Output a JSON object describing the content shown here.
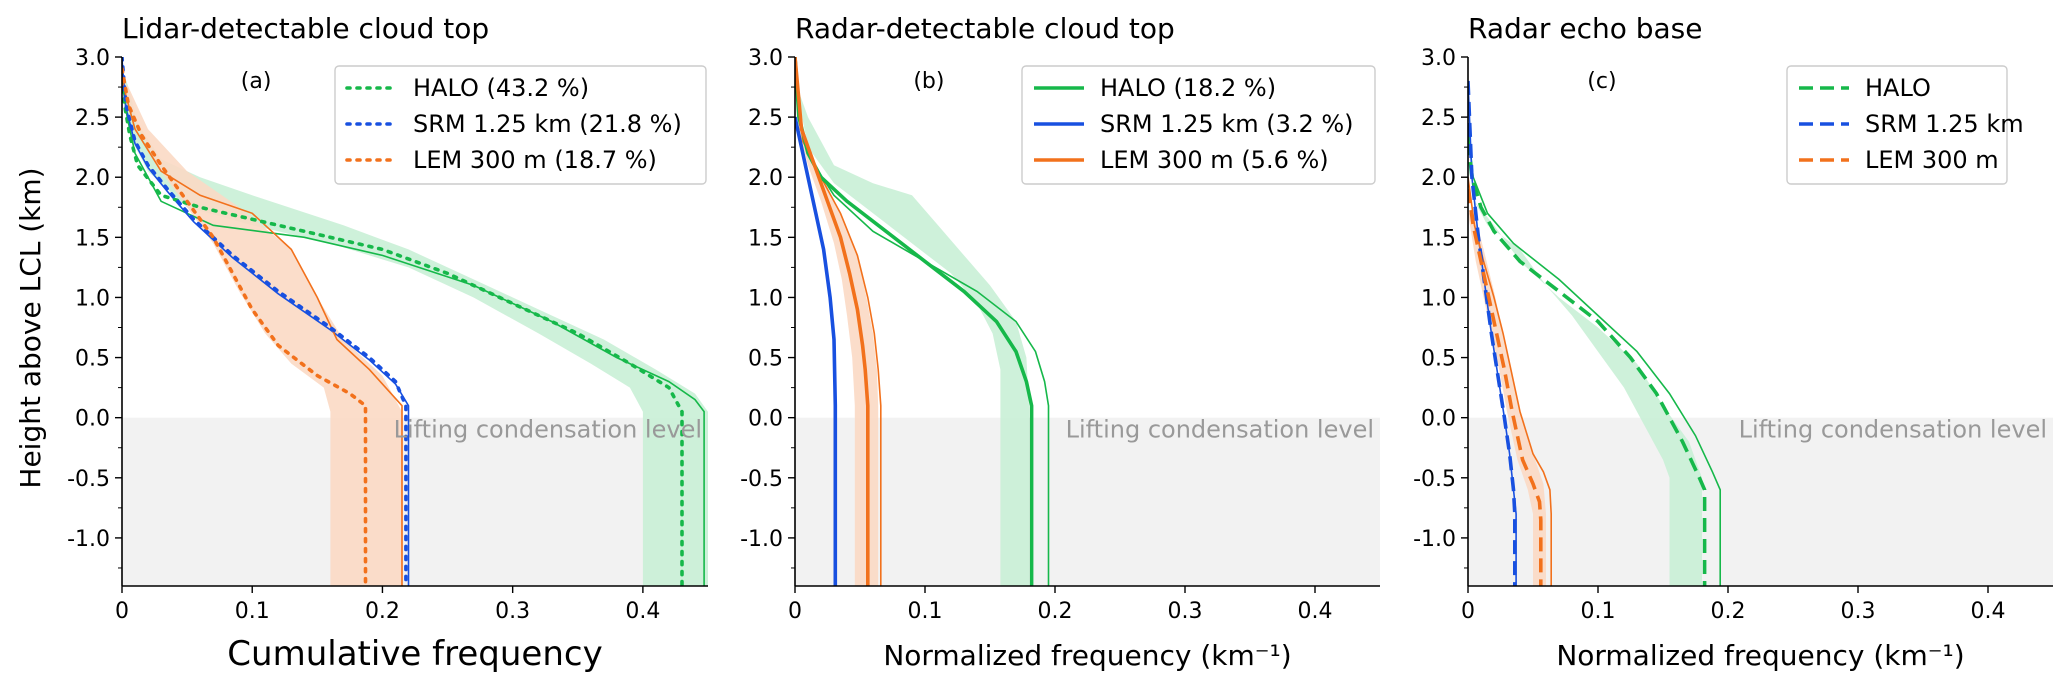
{
  "figure": {
    "ylabel": "Height above LCL (km)"
  },
  "colors": {
    "HALO": "#16b84a",
    "SRM": "#1850e0",
    "LEM": "#f2711c",
    "HALO_band": "#c9f0d6",
    "LEM_band": "#fbd9c4",
    "lcl_band": "#f2f2f2",
    "lcl_text": "#999999"
  },
  "chart_data": [
    {
      "type": "line",
      "panel_letter": "(a)",
      "title": "Lidar-detectable cloud top",
      "xlabel": "Cumulative frequency",
      "xlim": [
        0,
        0.45
      ],
      "ylim": [
        -1.4,
        3.0
      ],
      "x_ticks": [
        0,
        0.1,
        0.2,
        0.3,
        0.4
      ],
      "x_tick_labels": [
        "0",
        "0.1",
        "0.2",
        "0.3",
        "0.4"
      ],
      "y_ticks": [
        -1.0,
        -0.5,
        0.0,
        0.5,
        1.0,
        1.5,
        2.0,
        2.5,
        3.0
      ],
      "y_tick_labels": [
        "-1.0",
        "-0.5",
        "0.0",
        "0.5",
        "1.0",
        "1.5",
        "2.0",
        "2.5",
        "3.0"
      ],
      "line_style": "dotted",
      "lcl_label": "Lifting condensation level",
      "legend_position": "top-right",
      "series": [
        {
          "name": "HALO (43.2 %)",
          "key": "HALO",
          "x": [
            0,
            0.002,
            0.006,
            0.012,
            0.03,
            0.06,
            0.12,
            0.2,
            0.25,
            0.3,
            0.35,
            0.39,
            0.42,
            0.43,
            0.43
          ],
          "y": [
            2.9,
            2.6,
            2.35,
            2.1,
            1.85,
            1.75,
            1.6,
            1.4,
            1.2,
            0.95,
            0.7,
            0.45,
            0.25,
            0.05,
            -1.4
          ],
          "upper_x": [
            0.005,
            0.012,
            0.03,
            0.06,
            0.1,
            0.17,
            0.22,
            0.27,
            0.32,
            0.37,
            0.41,
            0.44,
            0.45,
            0.45
          ],
          "upper_y": [
            2.75,
            2.45,
            2.15,
            2.0,
            1.85,
            1.6,
            1.4,
            1.15,
            0.9,
            0.65,
            0.4,
            0.2,
            0.05,
            -1.4
          ],
          "lower_x": [
            0,
            0.003,
            0.008,
            0.02,
            0.05,
            0.1,
            0.16,
            0.22,
            0.27,
            0.32,
            0.36,
            0.39,
            0.4,
            0.4
          ],
          "lower_y": [
            2.9,
            2.55,
            2.3,
            2.05,
            1.75,
            1.6,
            1.45,
            1.25,
            1.0,
            0.7,
            0.45,
            0.25,
            0.05,
            -1.4
          ],
          "thin_x": [
            0,
            0.004,
            0.01,
            0.03,
            0.07,
            0.14,
            0.2,
            0.27,
            0.33,
            0.38,
            0.42,
            0.44,
            0.447,
            0.447
          ],
          "thin_y": [
            2.8,
            2.5,
            2.2,
            1.8,
            1.6,
            1.5,
            1.35,
            1.1,
            0.8,
            0.5,
            0.3,
            0.15,
            0.05,
            -1.4
          ]
        },
        {
          "name": "SRM 1.25 km (21.8 %)",
          "key": "SRM",
          "x": [
            0,
            0.003,
            0.01,
            0.02,
            0.035,
            0.055,
            0.085,
            0.12,
            0.16,
            0.19,
            0.21,
            0.218,
            0.218
          ],
          "y": [
            3.0,
            2.6,
            2.3,
            2.1,
            1.9,
            1.65,
            1.35,
            1.05,
            0.75,
            0.5,
            0.3,
            0.1,
            -1.4
          ],
          "thin_x": [
            0,
            0.003,
            0.01,
            0.02,
            0.035,
            0.055,
            0.085,
            0.12,
            0.16,
            0.19,
            0.21,
            0.22,
            0.22
          ],
          "thin_y": [
            2.98,
            2.58,
            2.28,
            2.08,
            1.88,
            1.63,
            1.33,
            1.03,
            0.73,
            0.48,
            0.28,
            0.1,
            -1.4
          ]
        },
        {
          "name": "LEM 300 m (18.7 %)",
          "key": "LEM",
          "x": [
            0,
            0.005,
            0.015,
            0.03,
            0.05,
            0.07,
            0.085,
            0.1,
            0.12,
            0.15,
            0.175,
            0.187,
            0.187
          ],
          "y": [
            2.9,
            2.6,
            2.35,
            2.1,
            1.8,
            1.5,
            1.2,
            0.9,
            0.6,
            0.35,
            0.2,
            0.1,
            -1.4
          ],
          "upper_x": [
            0.005,
            0.02,
            0.05,
            0.09,
            0.13,
            0.15,
            0.17,
            0.2,
            0.215,
            0.215
          ],
          "upper_y": [
            2.75,
            2.4,
            2.05,
            1.75,
            1.4,
            1.0,
            0.65,
            0.35,
            0.05,
            -1.4
          ],
          "lower_x": [
            0,
            0.01,
            0.03,
            0.05,
            0.07,
            0.09,
            0.11,
            0.13,
            0.155,
            0.16,
            0.16
          ],
          "lower_y": [
            2.8,
            2.45,
            2.05,
            1.75,
            1.45,
            1.05,
            0.7,
            0.45,
            0.25,
            0.05,
            -1.4
          ],
          "thin_x": [
            0,
            0.01,
            0.03,
            0.06,
            0.1,
            0.13,
            0.15,
            0.165,
            0.19,
            0.215,
            0.215
          ],
          "thin_y": [
            2.8,
            2.4,
            2.05,
            1.85,
            1.7,
            1.4,
            1.0,
            0.65,
            0.4,
            0.1,
            -1.4
          ]
        }
      ]
    },
    {
      "type": "line",
      "panel_letter": "(b)",
      "title": "Radar-detectable cloud top",
      "xlabel": "Normalized frequency (km⁻¹)",
      "xlim": [
        0,
        0.45
      ],
      "ylim": [
        -1.4,
        3.0
      ],
      "x_ticks": [
        0,
        0.1,
        0.2,
        0.3,
        0.4
      ],
      "x_tick_labels": [
        "0",
        "0.1",
        "0.2",
        "0.3",
        "0.4"
      ],
      "y_ticks": [
        -1.0,
        -0.5,
        0.0,
        0.5,
        1.0,
        1.5,
        2.0,
        2.5,
        3.0
      ],
      "y_tick_labels": [
        "-1.0",
        "-0.5",
        "0.0",
        "0.5",
        "1.0",
        "1.5",
        "2.0",
        "2.5",
        "3.0"
      ],
      "line_style": "solid",
      "lcl_label": "Lifting condensation level",
      "legend_position": "top-right",
      "series": [
        {
          "name": "HALO (18.2 %)",
          "key": "HALO",
          "x": [
            0,
            0.003,
            0.01,
            0.02,
            0.04,
            0.07,
            0.1,
            0.13,
            0.155,
            0.17,
            0.178,
            0.182,
            0.182
          ],
          "y": [
            3.0,
            2.5,
            2.2,
            2.0,
            1.8,
            1.55,
            1.3,
            1.05,
            0.8,
            0.55,
            0.3,
            0.1,
            -1.4
          ],
          "upper_x": [
            0.01,
            0.03,
            0.06,
            0.09,
            0.11,
            0.13,
            0.15,
            0.17,
            0.178,
            0.18,
            0.18
          ],
          "upper_y": [
            2.5,
            2.1,
            1.95,
            1.85,
            1.6,
            1.35,
            1.1,
            0.8,
            0.5,
            0.1,
            -1.4
          ],
          "lower_x": [
            0,
            0.01,
            0.03,
            0.06,
            0.09,
            0.12,
            0.14,
            0.152,
            0.158,
            0.158,
            0.158
          ],
          "lower_y": [
            2.8,
            2.25,
            1.95,
            1.7,
            1.45,
            1.2,
            0.95,
            0.7,
            0.4,
            0.1,
            -1.4
          ],
          "thin_x": [
            0,
            0.005,
            0.015,
            0.03,
            0.06,
            0.1,
            0.14,
            0.17,
            0.185,
            0.192,
            0.195,
            0.195
          ],
          "thin_y": [
            2.9,
            2.4,
            2.1,
            1.85,
            1.55,
            1.3,
            1.05,
            0.8,
            0.55,
            0.3,
            0.1,
            -1.4
          ]
        },
        {
          "name": "SRM 1.25 km (3.2 %)",
          "key": "SRM",
          "x": [
            0,
            0.004,
            0.01,
            0.016,
            0.022,
            0.027,
            0.03,
            0.031,
            0.031
          ],
          "y": [
            2.5,
            2.3,
            2.0,
            1.7,
            1.4,
            1.0,
            0.65,
            0.1,
            -1.4
          ]
        },
        {
          "name": "LEM 300 m (5.6 %)",
          "key": "LEM",
          "x": [
            0,
            0.005,
            0.015,
            0.025,
            0.035,
            0.042,
            0.048,
            0.052,
            0.054,
            0.056,
            0.056
          ],
          "y": [
            3.0,
            2.4,
            2.1,
            1.8,
            1.5,
            1.2,
            0.9,
            0.6,
            0.4,
            0.1,
            -1.4
          ],
          "upper_x": [
            0.006,
            0.02,
            0.035,
            0.048,
            0.055,
            0.06,
            0.063,
            0.064,
            0.064
          ],
          "upper_y": [
            2.4,
            2.0,
            1.7,
            1.35,
            1.0,
            0.7,
            0.4,
            0.1,
            -1.4
          ],
          "lower_x": [
            0,
            0.01,
            0.02,
            0.03,
            0.036,
            0.04,
            0.044,
            0.046,
            0.046
          ],
          "lower_y": [
            2.5,
            2.1,
            1.8,
            1.45,
            1.15,
            0.85,
            0.5,
            0.1,
            -1.4
          ],
          "thin_x": [
            0,
            0.006,
            0.02,
            0.035,
            0.048,
            0.056,
            0.061,
            0.064,
            0.066,
            0.066
          ],
          "thin_y": [
            2.9,
            2.3,
            2.0,
            1.7,
            1.35,
            1.0,
            0.7,
            0.4,
            0.1,
            -1.4
          ]
        }
      ]
    },
    {
      "type": "line",
      "panel_letter": "(c)",
      "title": "Radar echo base",
      "xlabel": "Normalized frequency (km⁻¹)",
      "xlim": [
        0,
        0.45
      ],
      "ylim": [
        -1.4,
        3.0
      ],
      "x_ticks": [
        0,
        0.1,
        0.2,
        0.3,
        0.4
      ],
      "x_tick_labels": [
        "0",
        "0.1",
        "0.2",
        "0.3",
        "0.4"
      ],
      "y_ticks": [
        -1.0,
        -0.5,
        0.0,
        0.5,
        1.0,
        1.5,
        2.0,
        2.5,
        3.0
      ],
      "y_tick_labels": [
        "-1.0",
        "-0.5",
        "0.0",
        "0.5",
        "1.0",
        "1.5",
        "2.0",
        "2.5",
        "3.0"
      ],
      "line_style": "dashed",
      "lcl_label": "Lifting condensation level",
      "legend_position": "top-right",
      "series": [
        {
          "name": "HALO",
          "key": "HALO",
          "x": [
            0,
            0.003,
            0.01,
            0.02,
            0.04,
            0.07,
            0.1,
            0.125,
            0.145,
            0.165,
            0.178,
            0.182,
            0.182
          ],
          "y": [
            2.3,
            2.0,
            1.75,
            1.55,
            1.3,
            1.05,
            0.8,
            0.5,
            0.2,
            -0.2,
            -0.5,
            -0.6,
            -1.4
          ],
          "upper_x": [
            0.005,
            0.02,
            0.04,
            0.07,
            0.1,
            0.13,
            0.15,
            0.17,
            0.18,
            0.18
          ],
          "upper_y": [
            1.8,
            1.6,
            1.3,
            1.0,
            0.75,
            0.45,
            0.1,
            -0.2,
            -0.5,
            -1.4
          ],
          "lower_x": [
            0,
            0.015,
            0.04,
            0.06,
            0.08,
            0.1,
            0.12,
            0.135,
            0.15,
            0.155,
            0.155
          ],
          "lower_y": [
            1.9,
            1.6,
            1.4,
            1.1,
            0.85,
            0.55,
            0.25,
            -0.05,
            -0.35,
            -0.5,
            -1.4
          ],
          "thin_x": [
            0,
            0.004,
            0.015,
            0.035,
            0.07,
            0.1,
            0.13,
            0.155,
            0.175,
            0.188,
            0.194,
            0.194
          ],
          "thin_y": [
            2.4,
            2.0,
            1.7,
            1.45,
            1.15,
            0.85,
            0.55,
            0.2,
            -0.15,
            -0.45,
            -0.6,
            -1.4
          ]
        },
        {
          "name": "SRM 1.25 km",
          "key": "SRM",
          "x": [
            0,
            0.003,
            0.008,
            0.013,
            0.018,
            0.023,
            0.028,
            0.032,
            0.035,
            0.036,
            0.036
          ],
          "y": [
            2.8,
            2.0,
            1.5,
            1.1,
            0.7,
            0.35,
            0.0,
            -0.3,
            -0.6,
            -0.8,
            -1.4
          ],
          "thin_x": [
            0,
            0.003,
            0.008,
            0.013,
            0.018,
            0.023,
            0.028,
            0.032,
            0.035,
            0.037,
            0.037
          ],
          "thin_y": [
            2.8,
            2.0,
            1.5,
            1.1,
            0.7,
            0.35,
            0.0,
            -0.3,
            -0.6,
            -0.8,
            -1.4
          ]
        },
        {
          "name": "LEM 300 m",
          "key": "LEM",
          "x": [
            0,
            0.004,
            0.01,
            0.016,
            0.022,
            0.028,
            0.034,
            0.042,
            0.05,
            0.055,
            0.056,
            0.056
          ],
          "y": [
            1.9,
            1.6,
            1.3,
            1.0,
            0.7,
            0.4,
            0.05,
            -0.35,
            -0.55,
            -0.7,
            -0.85,
            -1.4
          ],
          "upper_x": [
            0.005,
            0.012,
            0.02,
            0.026,
            0.033,
            0.04,
            0.05,
            0.058,
            0.06,
            0.06
          ],
          "upper_y": [
            1.7,
            1.4,
            1.05,
            0.75,
            0.4,
            0.05,
            -0.3,
            -0.55,
            -0.8,
            -1.4
          ],
          "lower_x": [
            0,
            0.006,
            0.012,
            0.018,
            0.024,
            0.03,
            0.038,
            0.046,
            0.05,
            0.05
          ],
          "lower_y": [
            1.7,
            1.3,
            1.0,
            0.7,
            0.4,
            0.05,
            -0.35,
            -0.6,
            -0.8,
            -1.4
          ],
          "thin_x": [
            0,
            0.005,
            0.012,
            0.02,
            0.027,
            0.033,
            0.04,
            0.05,
            0.058,
            0.063,
            0.064,
            0.064
          ],
          "thin_y": [
            2.0,
            1.6,
            1.3,
            1.0,
            0.7,
            0.4,
            0.05,
            -0.3,
            -0.45,
            -0.6,
            -0.8,
            -1.4
          ]
        }
      ]
    }
  ]
}
